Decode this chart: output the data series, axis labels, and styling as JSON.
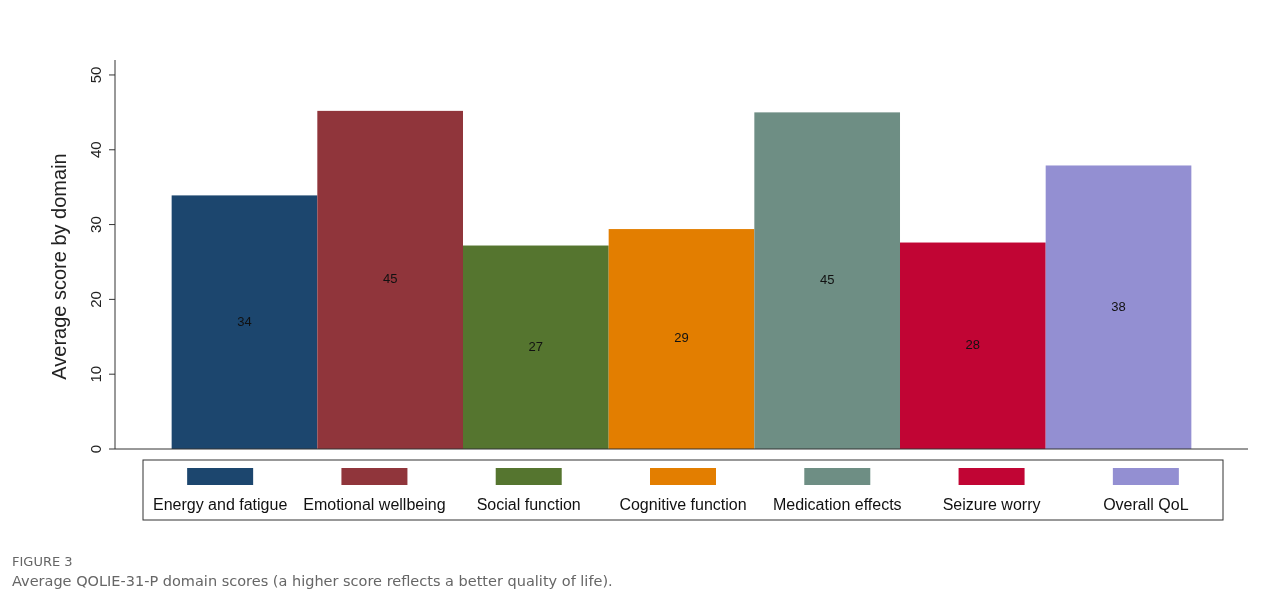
{
  "chart_data": {
    "type": "bar",
    "ylabel": "Average score by domain",
    "categories": [
      null
    ],
    "series": [
      {
        "name": "Energy and fatigue",
        "color": "#1c466e",
        "values": [
          33.9
        ],
        "value_labels": [
          "34"
        ]
      },
      {
        "name": "Emotional wellbeing",
        "color": "#90353b",
        "values": [
          45.2
        ],
        "value_labels": [
          "45"
        ]
      },
      {
        "name": "Social function",
        "color": "#55752f",
        "values": [
          27.2
        ],
        "value_labels": [
          "27"
        ]
      },
      {
        "name": "Cognitive function",
        "color": "#e37e00",
        "values": [
          29.4
        ],
        "value_labels": [
          "29"
        ]
      },
      {
        "name": "Medication effects",
        "color": "#6e8e84",
        "values": [
          45.0
        ],
        "value_labels": [
          "45"
        ]
      },
      {
        "name": "Seizure worry",
        "color": "#c10534",
        "values": [
          27.6
        ],
        "value_labels": [
          "28"
        ]
      },
      {
        "name": "Overall QoL",
        "color": "#938fd2",
        "values": [
          37.9
        ],
        "value_labels": [
          "38"
        ]
      }
    ],
    "ylim": [
      0,
      52
    ],
    "yticks": [
      0,
      10,
      20,
      30,
      40,
      50
    ],
    "grid": false,
    "legend": "bottom",
    "annotations": [
      "FIGURE 3",
      "Average QOLIE-31-P domain scores (a higher score reflects a better quality of life)."
    ]
  }
}
